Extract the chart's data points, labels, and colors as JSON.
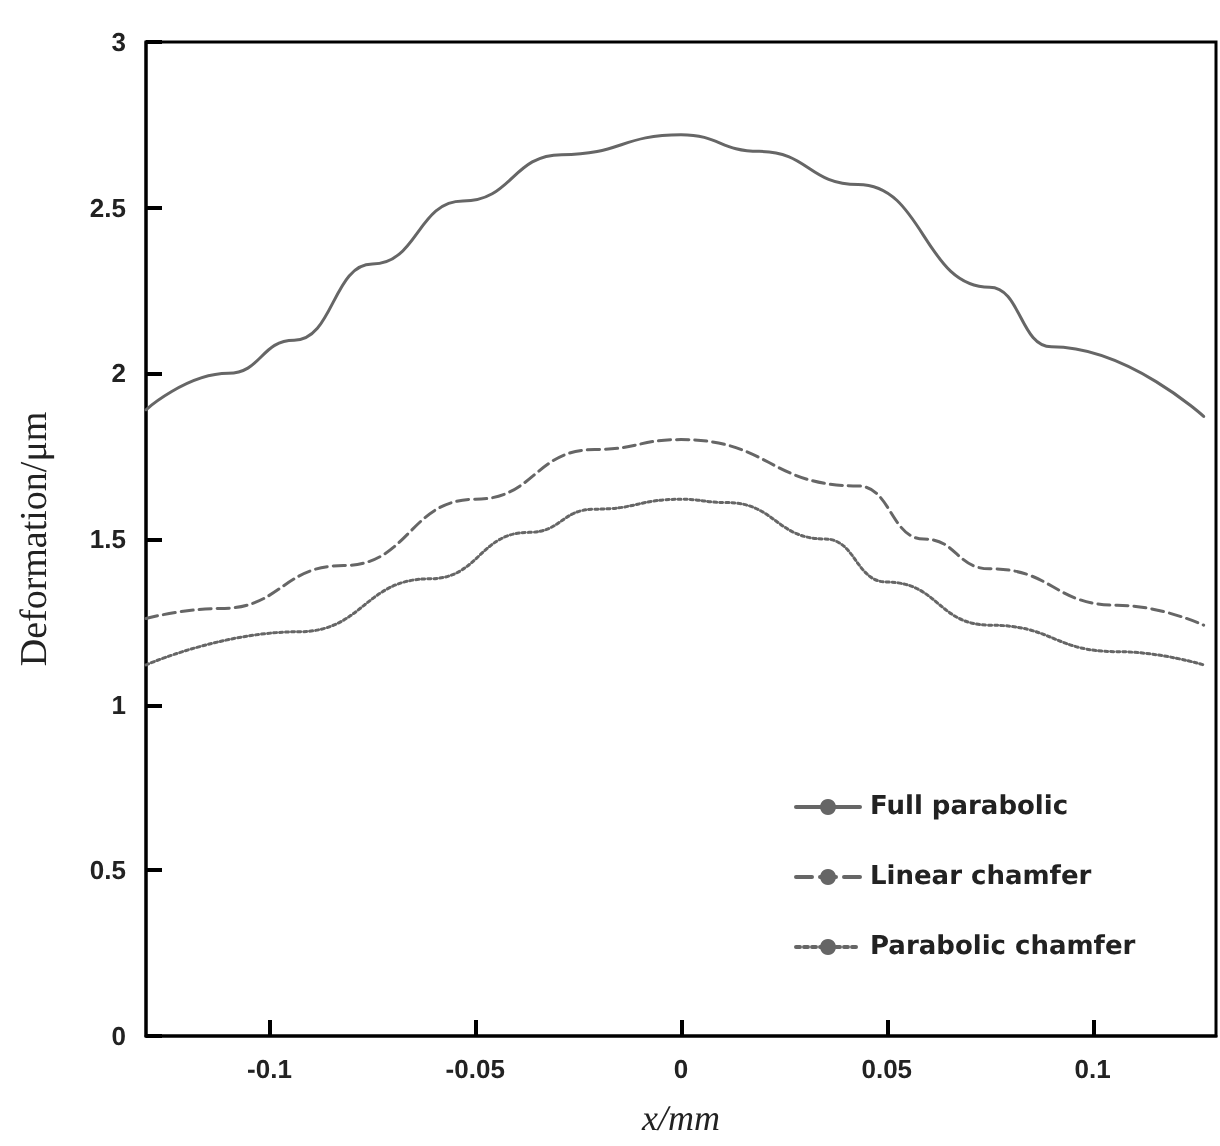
{
  "chart_data": {
    "type": "line",
    "xlabel": "x/mm",
    "ylabel": "Deformation/μm",
    "xlim": [
      -0.13,
      0.13
    ],
    "xticks": [
      -0.1,
      -0.05,
      0,
      0.05,
      0.1
    ],
    "ylim": [
      0,
      3
    ],
    "yticks": [
      0,
      0.5,
      1,
      1.5,
      2,
      2.5,
      3
    ],
    "grid": false,
    "legend": "bottom right",
    "marker": "none",
    "series": [
      {
        "name": "Full parabolic",
        "color": "#666666",
        "line_style": "solid",
        "x": [
          -0.13,
          -0.11,
          -0.094,
          -0.075,
          -0.053,
          -0.029,
          0,
          0.019,
          0.043,
          0.075,
          0.09,
          0.127
        ],
        "values": [
          1.89,
          2.0,
          2.1,
          2.33,
          2.52,
          2.66,
          2.72,
          2.67,
          2.57,
          2.26,
          2.08,
          1.87
        ]
      },
      {
        "name": "Linear chamfer",
        "color": "#666666",
        "line_style": "dashed",
        "x": [
          -0.13,
          -0.112,
          -0.082,
          -0.05,
          -0.021,
          0,
          0.043,
          0.059,
          0.075,
          0.106,
          0.127
        ],
        "values": [
          1.26,
          1.29,
          1.42,
          1.62,
          1.77,
          1.8,
          1.66,
          1.5,
          1.41,
          1.3,
          1.24
        ]
      },
      {
        "name": "Parabolic chamfer",
        "color": "#666666",
        "line_style": "dotted",
        "x": [
          -0.13,
          -0.093,
          -0.061,
          -0.037,
          -0.021,
          0,
          0.011,
          0.035,
          0.05,
          0.075,
          0.106,
          0.127
        ],
        "values": [
          1.12,
          1.22,
          1.38,
          1.52,
          1.59,
          1.62,
          1.61,
          1.5,
          1.37,
          1.24,
          1.16,
          1.12
        ]
      }
    ]
  }
}
